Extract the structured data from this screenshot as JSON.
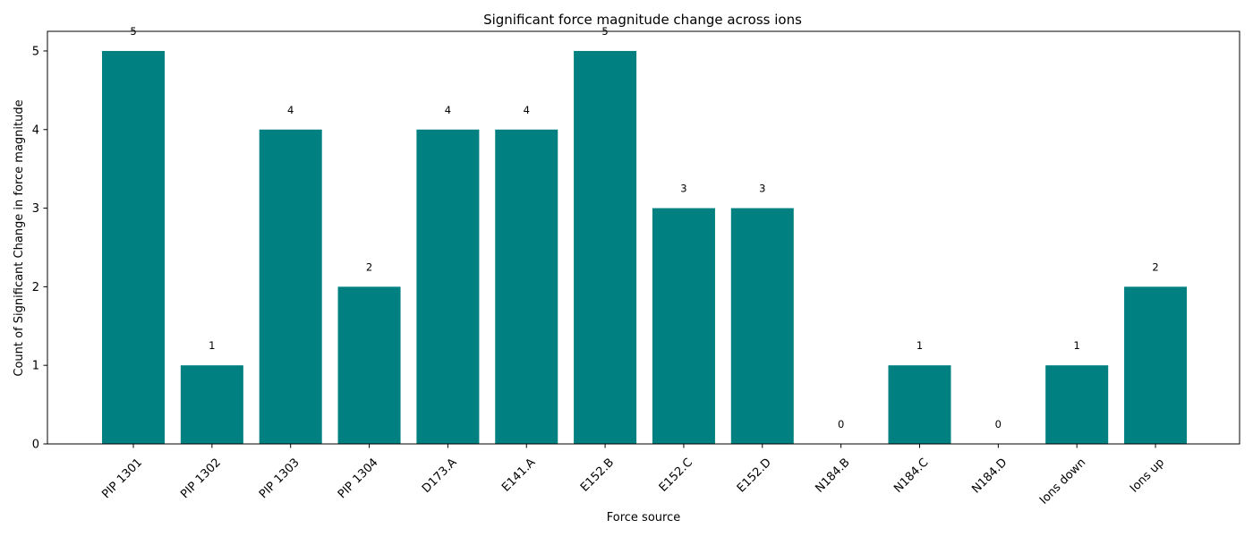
{
  "chart_data": {
    "type": "bar",
    "title": "Significant force magnitude change across ions",
    "xlabel": "Force source",
    "ylabel": "Count of Significant Change in force magnitude",
    "categories": [
      "PIP 1301",
      "PIP 1302",
      "PIP 1303",
      "PIP 1304",
      "D173.A",
      "E141.A",
      "E152.B",
      "E152.C",
      "E152.D",
      "N184.B",
      "N184.C",
      "N184.D",
      "Ions down",
      "Ions up"
    ],
    "values": [
      5,
      1,
      4,
      2,
      4,
      4,
      5,
      3,
      3,
      0,
      1,
      0,
      1,
      2
    ],
    "data_labels": [
      "5",
      "1",
      "4",
      "2",
      "4",
      "4",
      "5",
      "3",
      "3",
      "0",
      "1",
      "0",
      "1",
      "2"
    ],
    "ylim": [
      0,
      5.25
    ],
    "yticks": [
      "0",
      "1",
      "2",
      "3",
      "4",
      "5"
    ],
    "bar_color": "#008080",
    "grid": false,
    "legend": "none"
  }
}
